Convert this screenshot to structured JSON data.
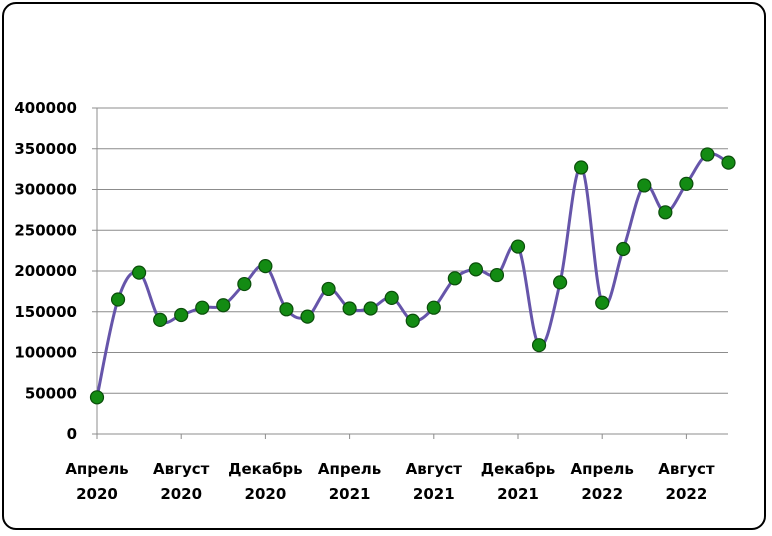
{
  "chart_data": {
    "type": "line",
    "title": "",
    "xlabel": "",
    "ylabel": "",
    "ylim": [
      0,
      400000
    ],
    "yticks": [
      0,
      50000,
      100000,
      150000,
      200000,
      250000,
      300000,
      350000,
      400000
    ],
    "grid": true,
    "legend": "none",
    "x_tick_labels": [
      [
        "Апрель",
        "2020"
      ],
      [
        "Август",
        "2020"
      ],
      [
        "Декабрь",
        "2020"
      ],
      [
        "Апрель",
        "2021"
      ],
      [
        "Август",
        "2021"
      ],
      [
        "Декабрь",
        "2021"
      ],
      [
        "Апрель",
        "2022"
      ],
      [
        "Август",
        "2022"
      ]
    ],
    "x": [
      "2020-04",
      "2020-05",
      "2020-06",
      "2020-07",
      "2020-08",
      "2020-09",
      "2020-10",
      "2020-11",
      "2020-12",
      "2021-01",
      "2021-02",
      "2021-03",
      "2021-04",
      "2021-05",
      "2021-06",
      "2021-07",
      "2021-08",
      "2021-09",
      "2021-10",
      "2021-11",
      "2021-12",
      "2022-01",
      "2022-02",
      "2022-03",
      "2022-04",
      "2022-05",
      "2022-06",
      "2022-07",
      "2022-08",
      "2022-09",
      "2022-10"
    ],
    "series": [
      {
        "values": [
          45000,
          165000,
          198000,
          140000,
          146000,
          155000,
          158000,
          184000,
          206000,
          153000,
          144000,
          178000,
          154000,
          154000,
          167000,
          139000,
          155000,
          191000,
          202000,
          195000,
          230000,
          109000,
          186000,
          327000,
          161000,
          227000,
          305000,
          272000,
          307000,
          343000,
          333000
        ],
        "line_color": "#6655aa",
        "marker_color": "#138b13"
      }
    ]
  }
}
